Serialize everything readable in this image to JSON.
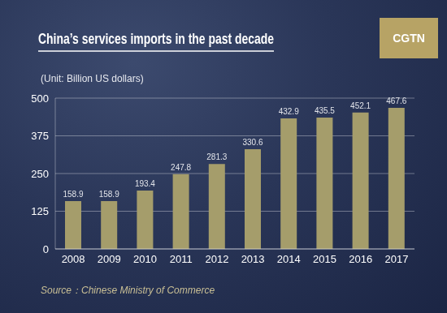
{
  "chart_data": {
    "type": "bar",
    "title": "China’s services imports in the past decade",
    "y_label": "(Unit: Billion US dollars)",
    "annotations": [
      "CGTN",
      "Source：Chinese Ministry of Commerce"
    ],
    "categories": [
      "2008",
      "2009",
      "2010",
      "2011",
      "2012",
      "2013",
      "2014",
      "2015",
      "2016",
      "2017"
    ],
    "values": [
      158.9,
      158.9,
      193.4,
      247.8,
      281.3,
      330.6,
      432.9,
      435.5,
      452.1,
      467.6
    ],
    "color": "#a59d6b",
    "ylim": [
      0,
      500
    ],
    "yticks": [
      0,
      125,
      250,
      375,
      500
    ],
    "grid": true,
    "data_labels": true
  }
}
